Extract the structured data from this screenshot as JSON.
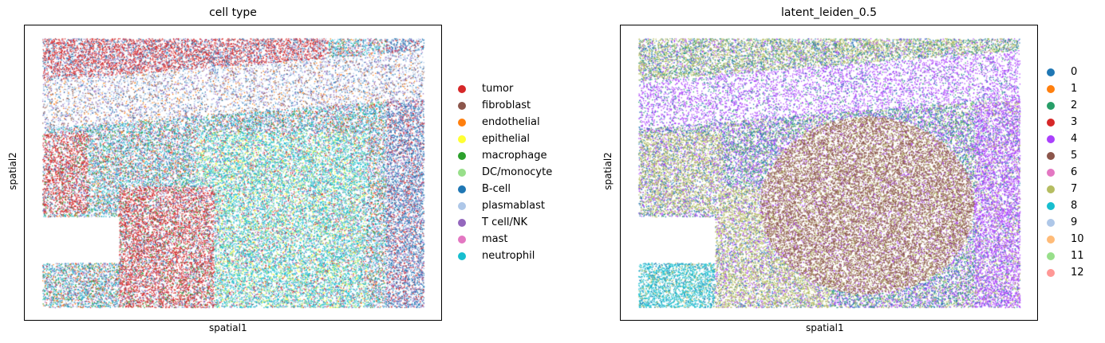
{
  "chart_data": [
    {
      "type": "scatter",
      "title": "cell type",
      "xlabel": "spatial1",
      "ylabel": "spatial2",
      "grid": false,
      "legend_position": "right",
      "legend": [
        {
          "name": "tumor",
          "color": "#d62728"
        },
        {
          "name": "fibroblast",
          "color": "#8c564b"
        },
        {
          "name": "endothelial",
          "color": "#ff7f0e"
        },
        {
          "name": "epithelial",
          "color": "#ffff33"
        },
        {
          "name": "macrophage",
          "color": "#2ca02c"
        },
        {
          "name": "DC/monocyte",
          "color": "#98df8a"
        },
        {
          "name": "B-cell",
          "color": "#1f77b4"
        },
        {
          "name": "plasmablast",
          "color": "#aec7e8"
        },
        {
          "name": "T cell/NK",
          "color": "#9467bd"
        },
        {
          "name": "mast",
          "color": "#e377c2"
        },
        {
          "name": "neutrophil",
          "color": "#17becf"
        }
      ]
    },
    {
      "type": "scatter",
      "title": "latent_leiden_0.5",
      "xlabel": "spatial1",
      "ylabel": "spatial2",
      "grid": false,
      "legend_position": "right",
      "legend": [
        {
          "name": "0",
          "color": "#1f77b4"
        },
        {
          "name": "1",
          "color": "#ff7f0e"
        },
        {
          "name": "2",
          "color": "#279e68"
        },
        {
          "name": "3",
          "color": "#d62728"
        },
        {
          "name": "4",
          "color": "#aa40fc"
        },
        {
          "name": "5",
          "color": "#8c564b"
        },
        {
          "name": "6",
          "color": "#e377c2"
        },
        {
          "name": "7",
          "color": "#b5bd61"
        },
        {
          "name": "8",
          "color": "#17becf"
        },
        {
          "name": "9",
          "color": "#aec7e8"
        },
        {
          "name": "10",
          "color": "#ffbb78"
        },
        {
          "name": "11",
          "color": "#98df8a"
        },
        {
          "name": "12",
          "color": "#ff9896"
        }
      ]
    }
  ]
}
